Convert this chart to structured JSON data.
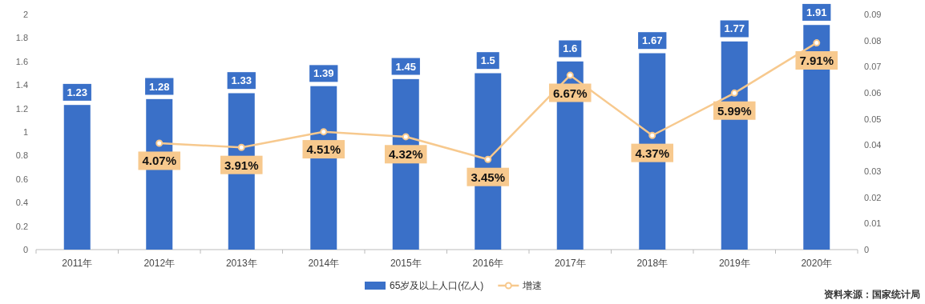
{
  "chart_data": {
    "type": "bar",
    "categories": [
      "2011年",
      "2012年",
      "2013年",
      "2014年",
      "2015年",
      "2016年",
      "2017年",
      "2018年",
      "2019年",
      "2020年"
    ],
    "series": [
      {
        "name": "65岁及以上人口(亿人)",
        "color": "#3a70c8",
        "values": [
          1.23,
          1.28,
          1.33,
          1.39,
          1.45,
          1.5,
          1.6,
          1.67,
          1.77,
          1.91
        ],
        "value_labels": [
          "1.23",
          "1.28",
          "1.33",
          "1.39",
          "1.45",
          "1.5",
          "1.6",
          "1.67",
          "1.77",
          "1.91"
        ]
      },
      {
        "name": "增速",
        "type": "line",
        "axis": "y2",
        "color": "#f7c98e",
        "values": [
          null,
          0.0407,
          0.0391,
          0.0451,
          0.0432,
          0.0345,
          0.0667,
          0.0437,
          0.0599,
          0.0791
        ],
        "value_labels": [
          null,
          "4.07%",
          "3.91%",
          "4.51%",
          "4.32%",
          "3.45%",
          "6.67%",
          "4.37%",
          "5.99%",
          "7.91%"
        ]
      }
    ],
    "ylim": [
      0,
      2
    ],
    "yticks": [
      0,
      0.2,
      0.4,
      0.6,
      0.8,
      1,
      1.2,
      1.4,
      1.6,
      1.8,
      2
    ],
    "y2lim": [
      0,
      0.09
    ],
    "y2ticks": [
      0,
      0.01,
      0.02,
      0.03,
      0.04,
      0.05,
      0.06,
      0.07,
      0.08,
      0.09
    ],
    "marker": "circle",
    "legend": "bottom",
    "grid": false,
    "annotations": [
      "资料来源：国家统计局"
    ]
  }
}
